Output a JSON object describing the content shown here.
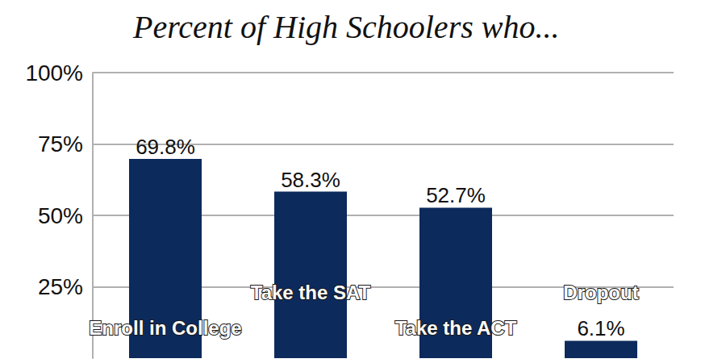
{
  "chart_data": {
    "type": "bar",
    "title": "Percent of High Schoolers who...",
    "categories": [
      "Enroll in College",
      "Take the SAT",
      "Take the ACT",
      "Dropout"
    ],
    "values": [
      69.8,
      58.3,
      52.7,
      6.1
    ],
    "value_labels": [
      "69.8%",
      "58.3%",
      "52.7%",
      "6.1%"
    ],
    "color": "#0d2a5c",
    "ylim": [
      0,
      100
    ],
    "yticks": [
      {
        "value": 25,
        "label": "25%"
      },
      {
        "value": 50,
        "label": "50%"
      },
      {
        "value": 75,
        "label": "75%"
      },
      {
        "value": 100,
        "label": "100%"
      }
    ],
    "grid": true,
    "data_labels": true
  }
}
